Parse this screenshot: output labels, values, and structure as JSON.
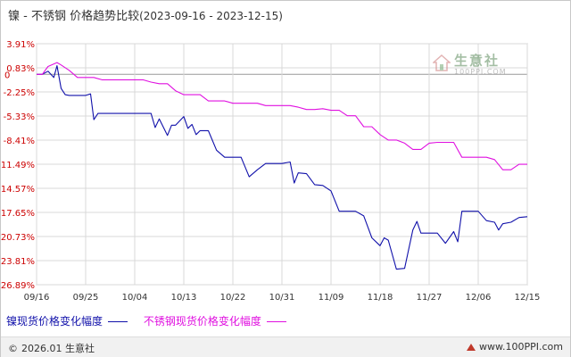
{
  "title": {
    "main": "镍 - 不锈钢 价格趋势比较",
    "range": "(2023-09-16 - 2023-12-15)"
  },
  "logo": {
    "brand": "生意社",
    "url": "100PPI.COM"
  },
  "legend": [
    {
      "label": "镍现货价格变化幅度",
      "color": "#1010aa"
    },
    {
      "label": "不锈钢现货价格变化幅度",
      "color": "#e010e0"
    }
  ],
  "footer": {
    "copyright": "2026.01 生意社",
    "site": "www.100PPI.com"
  },
  "chart_data": {
    "type": "line",
    "ylabels": [
      "3.91%",
      "0.83%",
      "-2.25%",
      "-5.33%",
      "-8.41%",
      "-11.49%",
      "-14.57%",
      "-17.65%",
      "-20.73%",
      "-23.81%",
      "-26.89%"
    ],
    "yvalues": [
      3.91,
      0.83,
      -2.25,
      -5.33,
      -8.41,
      -11.49,
      -14.57,
      -17.65,
      -20.73,
      -23.81,
      -26.89
    ],
    "zero_label": "0",
    "ylim": [
      -26.89,
      3.91
    ],
    "xlabels": [
      "09/16",
      "09/25",
      "10/04",
      "10/13",
      "10/22",
      "10/31",
      "11/09",
      "11/18",
      "11/27",
      "12/06",
      "12/15"
    ],
    "grid": true,
    "series": [
      {
        "name": "镍现货价格变化幅度",
        "color": "#1010aa",
        "points": [
          [
            0,
            0
          ],
          [
            0.7,
            0
          ],
          [
            1.4,
            0.4
          ],
          [
            2.1,
            -0.4
          ],
          [
            2.5,
            1.1
          ],
          [
            3,
            -1.8
          ],
          [
            3.5,
            -2.6
          ],
          [
            4,
            -2.7
          ],
          [
            5,
            -2.7
          ],
          [
            6,
            -2.7
          ],
          [
            6.6,
            -2.5
          ],
          [
            7,
            -5.8
          ],
          [
            7.5,
            -5
          ],
          [
            8,
            -5
          ],
          [
            9,
            -5
          ],
          [
            10,
            -5
          ],
          [
            11,
            -5
          ],
          [
            12,
            -5
          ],
          [
            13,
            -5
          ],
          [
            14,
            -5
          ],
          [
            14.5,
            -6.8
          ],
          [
            15,
            -5.7
          ],
          [
            16,
            -7.8
          ],
          [
            16.5,
            -6.5
          ],
          [
            17,
            -6.5
          ],
          [
            18,
            -5.4
          ],
          [
            18.5,
            -6.9
          ],
          [
            19,
            -6.4
          ],
          [
            19.5,
            -7.7
          ],
          [
            20,
            -7.2
          ],
          [
            21,
            -7.2
          ],
          [
            22,
            -9.7
          ],
          [
            23,
            -10.6
          ],
          [
            24,
            -10.6
          ],
          [
            25,
            -10.6
          ],
          [
            26,
            -13.1
          ],
          [
            27,
            -12.2
          ],
          [
            28,
            -11.4
          ],
          [
            29,
            -11.4
          ],
          [
            30,
            -11.4
          ],
          [
            31,
            -11.2
          ],
          [
            31.5,
            -13.9
          ],
          [
            32,
            -12.6
          ],
          [
            33,
            -12.7
          ],
          [
            34,
            -14.1
          ],
          [
            35,
            -14.2
          ],
          [
            36,
            -14.9
          ],
          [
            37,
            -17.5
          ],
          [
            38,
            -17.5
          ],
          [
            39,
            -17.5
          ],
          [
            40,
            -18.1
          ],
          [
            41,
            -20.9
          ],
          [
            42,
            -21.9
          ],
          [
            42.5,
            -20.9
          ],
          [
            43,
            -21.2
          ],
          [
            44,
            -24.9
          ],
          [
            45,
            -24.8
          ],
          [
            46,
            -19.9
          ],
          [
            46.5,
            -18.8
          ],
          [
            47,
            -20.3
          ],
          [
            48,
            -20.3
          ],
          [
            49,
            -20.3
          ],
          [
            50,
            -21.6
          ],
          [
            51,
            -20.1
          ],
          [
            51.5,
            -21.4
          ],
          [
            52,
            -17.5
          ],
          [
            53,
            -17.5
          ],
          [
            54,
            -17.5
          ],
          [
            55,
            -18.7
          ],
          [
            56,
            -18.9
          ],
          [
            56.5,
            -19.9
          ],
          [
            57,
            -19.1
          ],
          [
            58,
            -18.9
          ],
          [
            59,
            -18.3
          ],
          [
            60,
            -18.2
          ]
        ]
      },
      {
        "name": "不锈钢现货价格变化幅度",
        "color": "#e010e0",
        "points": [
          [
            0,
            0
          ],
          [
            0.7,
            0
          ],
          [
            1.4,
            1
          ],
          [
            2.5,
            1.5
          ],
          [
            3,
            1.2
          ],
          [
            4,
            0.5
          ],
          [
            5,
            -0.4
          ],
          [
            6,
            -0.4
          ],
          [
            7,
            -0.4
          ],
          [
            8,
            -0.7
          ],
          [
            9,
            -0.7
          ],
          [
            10,
            -0.7
          ],
          [
            11,
            -0.7
          ],
          [
            12,
            -0.7
          ],
          [
            13,
            -0.7
          ],
          [
            14,
            -1
          ],
          [
            15,
            -1.2
          ],
          [
            16,
            -1.2
          ],
          [
            17,
            -2.1
          ],
          [
            18,
            -2.6
          ],
          [
            19,
            -2.6
          ],
          [
            20,
            -2.6
          ],
          [
            21,
            -3.4
          ],
          [
            22,
            -3.4
          ],
          [
            23,
            -3.4
          ],
          [
            24,
            -3.7
          ],
          [
            25,
            -3.7
          ],
          [
            26,
            -3.7
          ],
          [
            27,
            -3.7
          ],
          [
            28,
            -4
          ],
          [
            29,
            -4
          ],
          [
            30,
            -4
          ],
          [
            31,
            -4
          ],
          [
            32,
            -4.2
          ],
          [
            33,
            -4.5
          ],
          [
            34,
            -4.5
          ],
          [
            35,
            -4.4
          ],
          [
            36,
            -4.6
          ],
          [
            37,
            -4.6
          ],
          [
            38,
            -5.3
          ],
          [
            39,
            -5.3
          ],
          [
            40,
            -6.7
          ],
          [
            41,
            -6.7
          ],
          [
            42,
            -7.7
          ],
          [
            43,
            -8.4
          ],
          [
            44,
            -8.4
          ],
          [
            45,
            -8.8
          ],
          [
            46,
            -9.6
          ],
          [
            47,
            -9.6
          ],
          [
            48,
            -8.8
          ],
          [
            49,
            -8.7
          ],
          [
            50,
            -8.7
          ],
          [
            51,
            -8.7
          ],
          [
            52,
            -10.6
          ],
          [
            53,
            -10.6
          ],
          [
            54,
            -10.6
          ],
          [
            55,
            -10.6
          ],
          [
            56,
            -10.9
          ],
          [
            57,
            -12.2
          ],
          [
            58,
            -12.2
          ],
          [
            59,
            -11.5
          ],
          [
            60,
            -11.5
          ]
        ]
      }
    ]
  }
}
